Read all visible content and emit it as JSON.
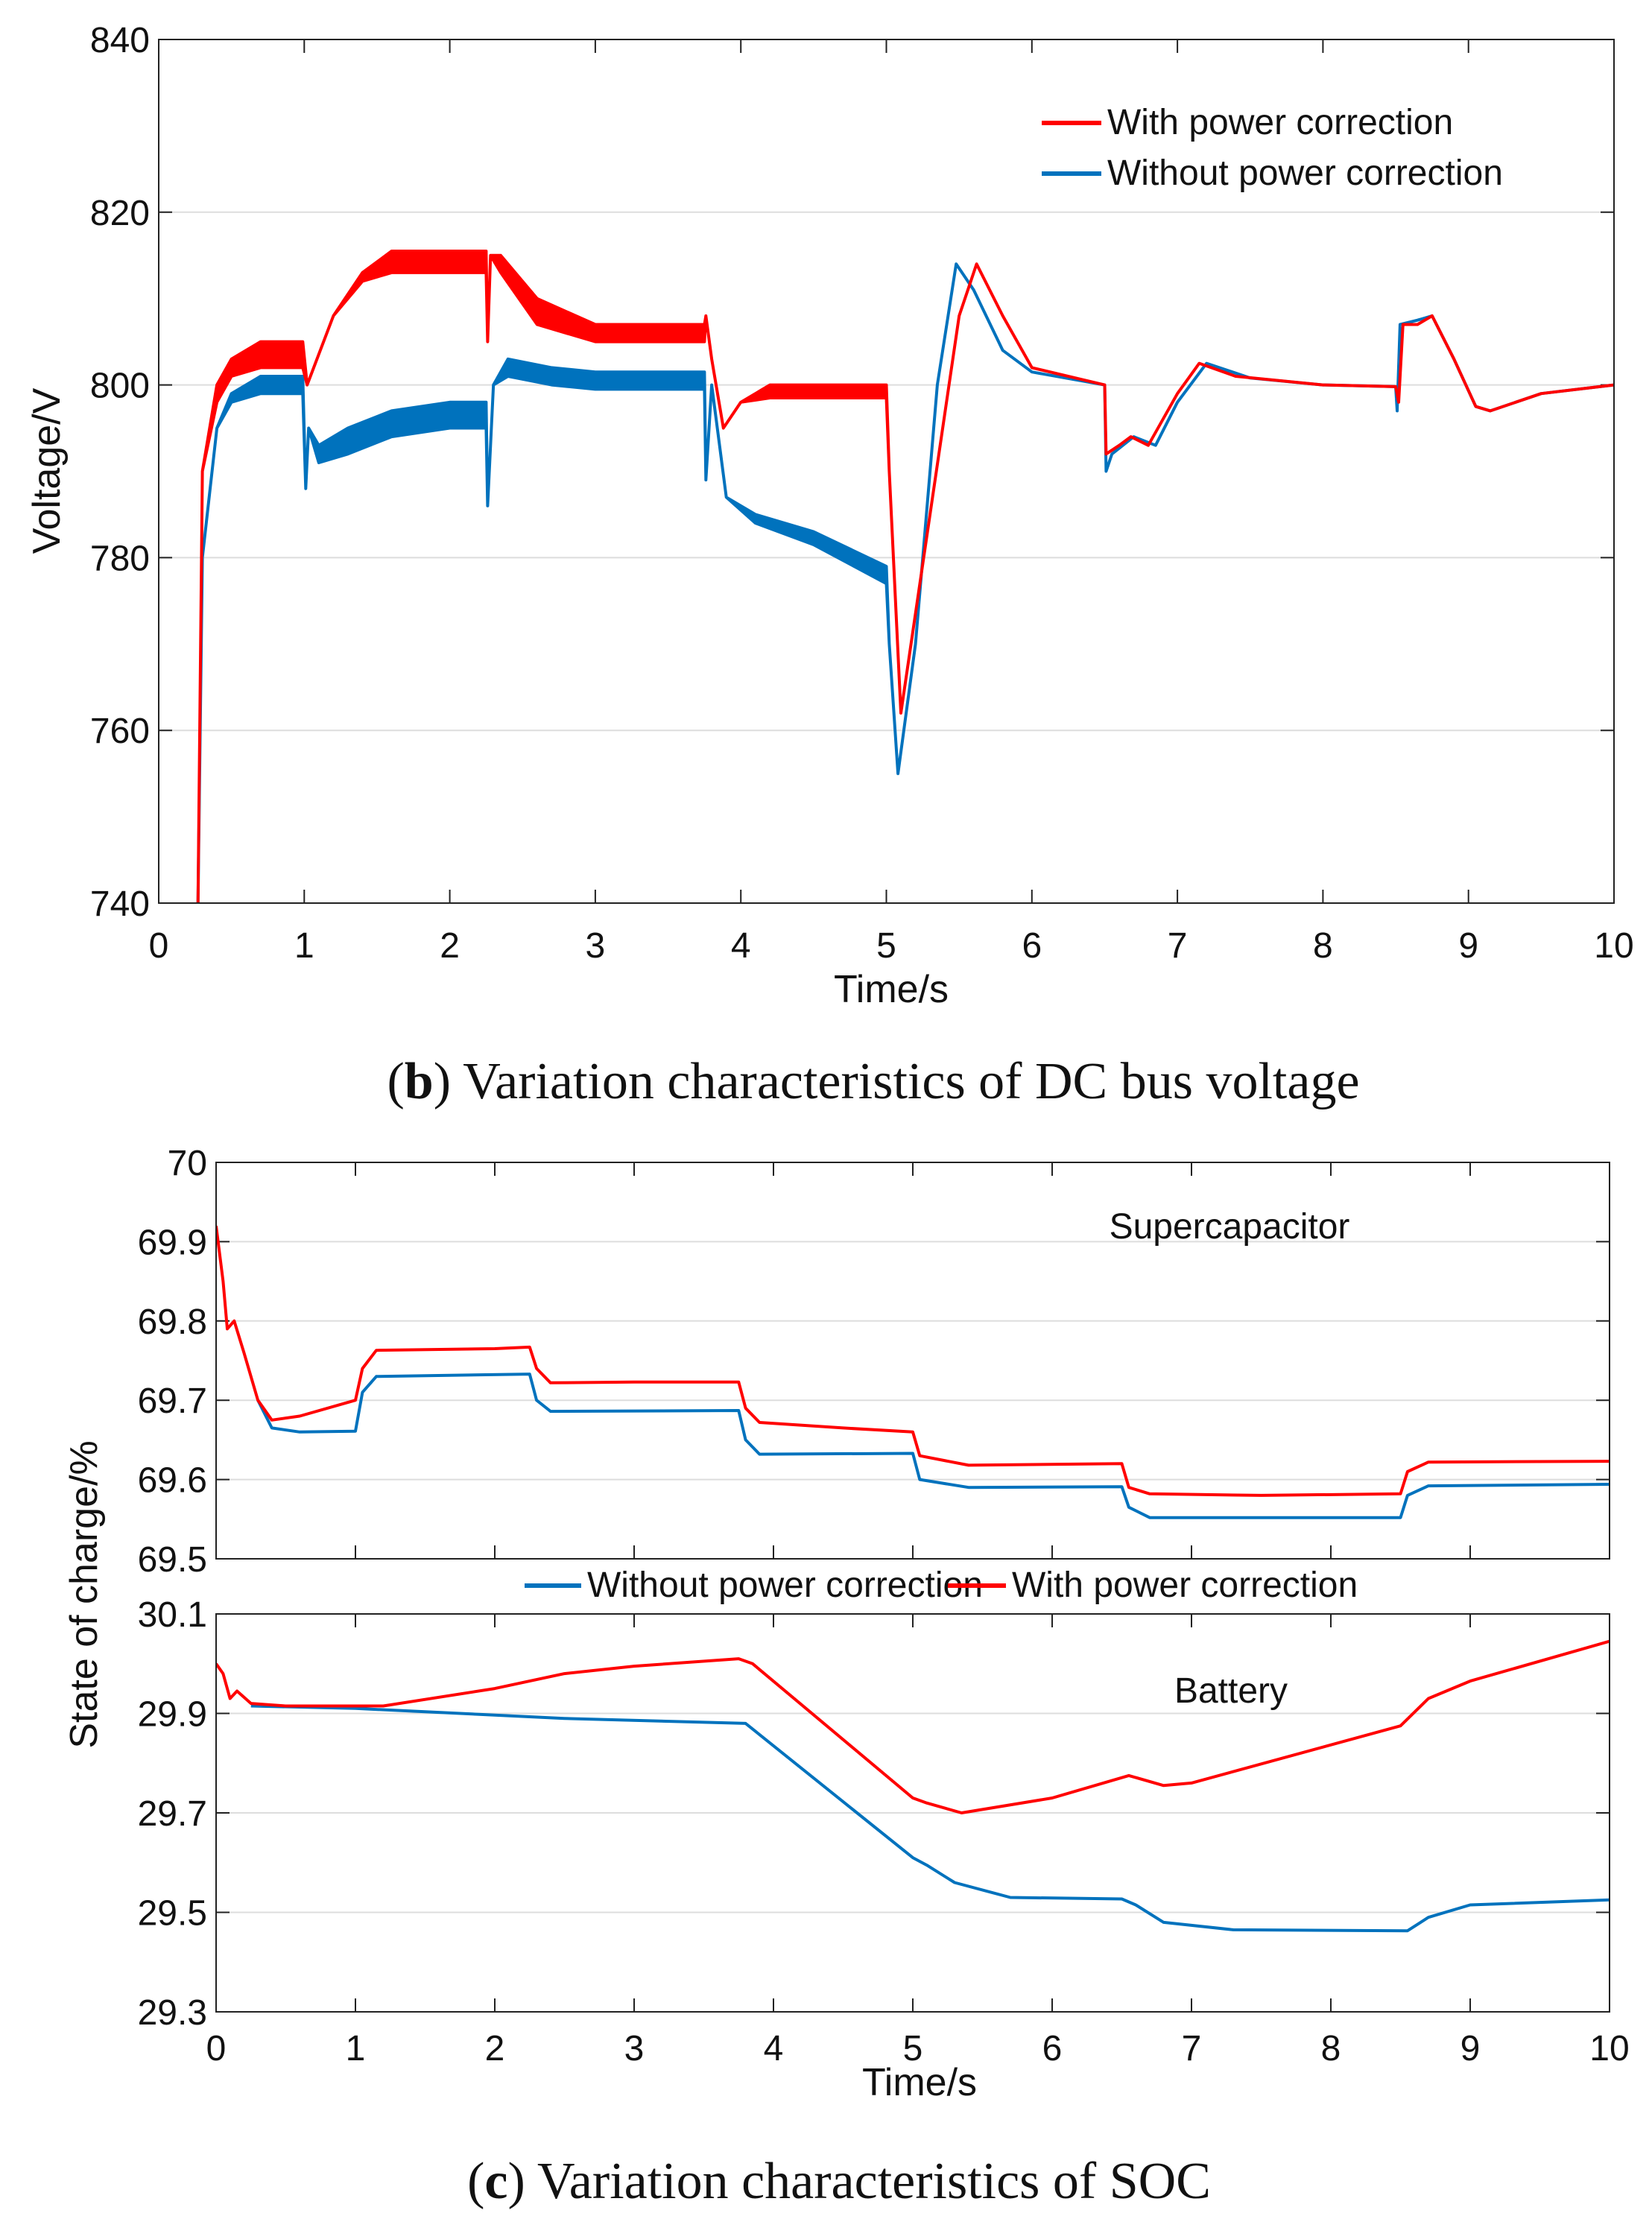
{
  "colors": {
    "with": "#ff0000",
    "without": "#0072bd",
    "grid": "#dddddd"
  },
  "captions": {
    "b_letter": "b",
    "b_text": " Variation characteristics of DC bus voltage",
    "c_letter": "c",
    "c_text": " Variation characteristics of SOC"
  },
  "chart_data": [
    {
      "id": "voltage",
      "type": "line",
      "xlabel": "Time/s",
      "ylabel": "Voltage/V",
      "xlim": [
        0,
        10
      ],
      "ylim": [
        740,
        840
      ],
      "xticks": [
        "0",
        "1",
        "2",
        "3",
        "4",
        "5",
        "6",
        "7",
        "8",
        "9",
        "10"
      ],
      "yticks": [
        "740",
        "760",
        "780",
        "800",
        "820",
        "840"
      ],
      "grid": "horizontal",
      "legend": "top-right",
      "legend_entries": [
        "With power correction",
        "Without power correction"
      ],
      "note": "points are [time, lower envelope, upper envelope]",
      "series": [
        {
          "name": "With power correction",
          "color": "with",
          "points": [
            [
              0.27,
              740,
              740
            ],
            [
              0.3,
              790,
              790
            ],
            [
              0.4,
              798,
              800
            ],
            [
              0.5,
              801,
              803
            ],
            [
              0.7,
              802,
              805
            ],
            [
              0.99,
              802,
              805
            ],
            [
              1.02,
              800,
              800
            ],
            [
              1.2,
              808,
              808
            ],
            [
              1.4,
              812,
              813
            ],
            [
              1.6,
              813,
              815.5
            ],
            [
              2.25,
              813,
              815.5
            ],
            [
              2.26,
              805,
              805
            ],
            [
              2.28,
              815,
              815
            ],
            [
              2.35,
              813,
              815
            ],
            [
              2.6,
              807,
              810
            ],
            [
              3.0,
              805,
              807
            ],
            [
              3.75,
              805,
              807
            ],
            [
              3.76,
              808,
              808
            ],
            [
              3.8,
              803,
              803
            ],
            [
              3.88,
              795,
              795
            ],
            [
              4.0,
              798,
              798
            ],
            [
              4.2,
              798.5,
              800
            ],
            [
              5.0,
              798.5,
              800
            ],
            [
              5.02,
              790,
              790
            ],
            [
              5.1,
              762,
              762
            ],
            [
              5.3,
              785,
              785
            ],
            [
              5.5,
              808,
              808
            ],
            [
              5.62,
              814,
              814
            ],
            [
              5.8,
              808,
              808
            ],
            [
              6.0,
              802,
              802
            ],
            [
              6.5,
              800,
              800
            ],
            [
              6.51,
              792,
              792
            ],
            [
              6.6,
              793,
              793
            ],
            [
              6.68,
              794,
              794
            ],
            [
              6.8,
              793,
              793
            ],
            [
              7.0,
              799,
              799
            ],
            [
              7.15,
              802.5,
              802.5
            ],
            [
              7.4,
              801,
              801
            ],
            [
              8.0,
              800,
              800
            ],
            [
              8.5,
              799.8,
              799.8
            ],
            [
              8.52,
              798,
              798
            ],
            [
              8.55,
              807,
              807
            ],
            [
              8.65,
              807,
              807
            ],
            [
              8.75,
              808,
              808
            ],
            [
              8.9,
              803,
              803
            ],
            [
              9.05,
              797.5,
              797.5
            ],
            [
              9.15,
              797,
              797
            ],
            [
              9.5,
              799,
              799
            ],
            [
              10,
              800,
              800
            ]
          ]
        },
        {
          "name": "Without power correction",
          "color": "without",
          "points": [
            [
              0.27,
              740,
              740
            ],
            [
              0.3,
              780,
              780
            ],
            [
              0.4,
              795,
              795
            ],
            [
              0.5,
              798,
              799
            ],
            [
              0.7,
              799,
              801
            ],
            [
              0.99,
              799,
              801
            ],
            [
              1.01,
              788,
              788
            ],
            [
              1.03,
              795,
              795
            ],
            [
              1.1,
              791,
              793
            ],
            [
              1.3,
              792,
              795
            ],
            [
              1.6,
              794,
              797
            ],
            [
              2.0,
              795,
              798
            ],
            [
              2.25,
              795,
              798
            ],
            [
              2.26,
              786,
              786
            ],
            [
              2.3,
              800,
              800
            ],
            [
              2.4,
              801,
              803
            ],
            [
              2.7,
              800,
              802
            ],
            [
              3.0,
              799.5,
              801.5
            ],
            [
              3.75,
              799.5,
              801.5
            ],
            [
              3.76,
              789,
              789
            ],
            [
              3.8,
              800,
              800
            ],
            [
              3.9,
              787,
              787
            ],
            [
              4.1,
              784,
              785
            ],
            [
              4.5,
              781.5,
              783
            ],
            [
              5.0,
              777,
              779
            ],
            [
              5.02,
              770,
              770
            ],
            [
              5.08,
              755,
              755
            ],
            [
              5.2,
              770,
              770
            ],
            [
              5.35,
              800,
              800
            ],
            [
              5.48,
              814,
              814
            ],
            [
              5.6,
              811,
              811
            ],
            [
              5.8,
              804,
              804
            ],
            [
              6.0,
              801.5,
              801.5
            ],
            [
              6.5,
              800,
              800
            ],
            [
              6.51,
              790,
              790
            ],
            [
              6.55,
              792,
              792
            ],
            [
              6.7,
              794,
              794
            ],
            [
              6.85,
              793,
              793
            ],
            [
              7.0,
              798,
              798
            ],
            [
              7.2,
              802.5,
              802.5
            ],
            [
              7.5,
              800.8,
              800.8
            ],
            [
              8.0,
              800,
              800
            ],
            [
              8.5,
              799.8,
              799.8
            ],
            [
              8.51,
              797,
              797
            ],
            [
              8.53,
              807,
              807
            ],
            [
              8.65,
              807.5,
              807.5
            ],
            [
              8.75,
              808,
              808
            ],
            [
              8.9,
              803,
              803
            ],
            [
              9.05,
              797.5,
              797.5
            ],
            [
              9.15,
              797,
              797
            ],
            [
              9.5,
              799,
              799
            ],
            [
              10,
              800,
              800
            ]
          ]
        }
      ]
    },
    {
      "id": "soc-supercap",
      "type": "line",
      "annotation": "Supercapacitor",
      "ylabel": "State of charge/%",
      "xlim": [
        0,
        10
      ],
      "ylim": [
        69.5,
        70
      ],
      "yticks": [
        "69.5",
        "69.6",
        "69.7",
        "69.8",
        "69.9",
        "70"
      ],
      "grid": "horizontal",
      "legend": "bottom-center",
      "legend_entries": [
        "Without power correction",
        "With power correction"
      ],
      "series": [
        {
          "name": "With power correction",
          "color": "with",
          "points": [
            [
              0,
              69.92
            ],
            [
              0.05,
              69.85
            ],
            [
              0.08,
              69.79
            ],
            [
              0.13,
              69.8
            ],
            [
              0.2,
              69.76
            ],
            [
              0.3,
              69.7
            ],
            [
              0.4,
              69.675
            ],
            [
              0.6,
              69.68
            ],
            [
              1.0,
              69.7
            ],
            [
              1.05,
              69.74
            ],
            [
              1.15,
              69.763
            ],
            [
              2.0,
              69.765
            ],
            [
              2.25,
              69.767
            ],
            [
              2.3,
              69.74
            ],
            [
              2.4,
              69.722
            ],
            [
              3.0,
              69.723
            ],
            [
              3.75,
              69.723
            ],
            [
              3.8,
              69.69
            ],
            [
              3.9,
              69.672
            ],
            [
              4.5,
              69.665
            ],
            [
              5.0,
              69.66
            ],
            [
              5.05,
              69.63
            ],
            [
              5.4,
              69.618
            ],
            [
              6.5,
              69.62
            ],
            [
              6.55,
              69.59
            ],
            [
              6.7,
              69.582
            ],
            [
              7.5,
              69.58
            ],
            [
              8.5,
              69.582
            ],
            [
              8.55,
              69.61
            ],
            [
              8.7,
              69.622
            ],
            [
              10,
              69.623
            ]
          ]
        },
        {
          "name": "Without power correction",
          "color": "without",
          "points": [
            [
              0.3,
              69.7
            ],
            [
              0.4,
              69.665
            ],
            [
              0.6,
              69.66
            ],
            [
              1.0,
              69.661
            ],
            [
              1.05,
              69.71
            ],
            [
              1.15,
              69.73
            ],
            [
              2.25,
              69.733
            ],
            [
              2.3,
              69.7
            ],
            [
              2.4,
              69.686
            ],
            [
              3.75,
              69.687
            ],
            [
              3.8,
              69.65
            ],
            [
              3.9,
              69.632
            ],
            [
              5.0,
              69.633
            ],
            [
              5.05,
              69.6
            ],
            [
              5.4,
              69.59
            ],
            [
              6.5,
              69.591
            ],
            [
              6.55,
              69.565
            ],
            [
              6.7,
              69.552
            ],
            [
              8.5,
              69.552
            ],
            [
              8.55,
              69.58
            ],
            [
              8.7,
              69.592
            ],
            [
              10,
              69.594
            ]
          ]
        }
      ]
    },
    {
      "id": "soc-battery",
      "type": "line",
      "annotation": "Battery",
      "xlabel": "Time/s",
      "xlim": [
        0,
        10
      ],
      "ylim": [
        29.3,
        30.1
      ],
      "xticks": [
        "0",
        "1",
        "2",
        "3",
        "4",
        "5",
        "6",
        "7",
        "8",
        "9",
        "10"
      ],
      "yticks": [
        "29.3",
        "29.5",
        "29.7",
        "29.9",
        "30.1"
      ],
      "grid": "horizontal",
      "series": [
        {
          "name": "With power correction",
          "color": "with",
          "points": [
            [
              0,
              30.0
            ],
            [
              0.05,
              29.98
            ],
            [
              0.1,
              29.93
            ],
            [
              0.15,
              29.945
            ],
            [
              0.25,
              29.92
            ],
            [
              0.5,
              29.915
            ],
            [
              1.2,
              29.915
            ],
            [
              2.0,
              29.95
            ],
            [
              2.5,
              29.98
            ],
            [
              3.0,
              29.995
            ],
            [
              3.75,
              30.01
            ],
            [
              3.85,
              30.0
            ],
            [
              5.0,
              29.73
            ],
            [
              5.1,
              29.72
            ],
            [
              5.35,
              29.7
            ],
            [
              6.0,
              29.73
            ],
            [
              6.55,
              29.775
            ],
            [
              6.8,
              29.755
            ],
            [
              7.0,
              29.76
            ],
            [
              8.5,
              29.875
            ],
            [
              8.7,
              29.93
            ],
            [
              9.0,
              29.965
            ],
            [
              10,
              30.045
            ]
          ]
        },
        {
          "name": "Without power correction",
          "color": "without",
          "points": [
            [
              0.25,
              29.915
            ],
            [
              1.0,
              29.91
            ],
            [
              2.5,
              29.89
            ],
            [
              3.8,
              29.88
            ],
            [
              5.0,
              29.61
            ],
            [
              5.1,
              29.595
            ],
            [
              5.3,
              29.56
            ],
            [
              5.7,
              29.53
            ],
            [
              6.5,
              29.527
            ],
            [
              6.6,
              29.515
            ],
            [
              6.8,
              29.48
            ],
            [
              7.3,
              29.465
            ],
            [
              8.55,
              29.463
            ],
            [
              8.7,
              29.49
            ],
            [
              9.0,
              29.515
            ],
            [
              10,
              29.525
            ]
          ]
        }
      ]
    }
  ]
}
